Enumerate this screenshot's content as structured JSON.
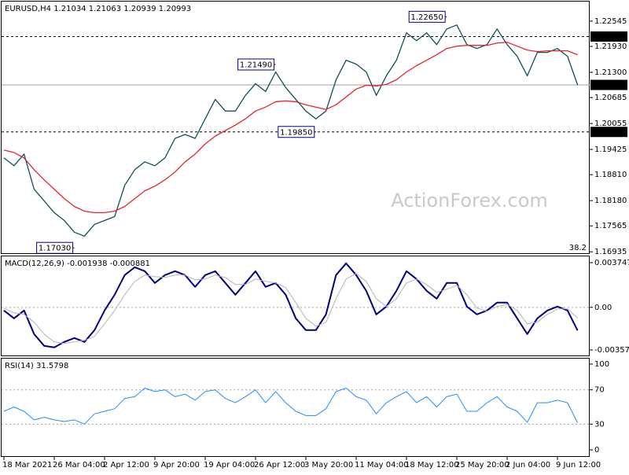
{
  "chart_data": [
    {
      "type": "price",
      "title": "EURUSD,H4  1.21034 1.21063 1.20939 1.20993",
      "categories": [
        "18 Mar 2021",
        null,
        null,
        null,
        null,
        "26 Mar 04:00",
        null,
        null,
        null,
        null,
        "2 Apr 12:00",
        null,
        null,
        null,
        null,
        "9 Apr 20:00",
        null,
        null,
        null,
        null,
        "19 Apr 04:00",
        null,
        null,
        null,
        null,
        "26 Apr 12:00",
        null,
        null,
        null,
        null,
        "3 May 20:00",
        null,
        null,
        null,
        null,
        "11 May 04:00",
        null,
        null,
        null,
        null,
        "18 May 12:00",
        null,
        null,
        null,
        null,
        "25 May 20:00",
        null,
        null,
        null,
        null,
        "2 Jun 04:00",
        null,
        null,
        null,
        null,
        "9 Jun 12:00",
        null,
        null
      ],
      "series": [
        {
          "color": "#0b4f5c",
          "values": [
            1.19217,
            1.19027,
            1.19312,
            1.18456,
            1.18171,
            1.17886,
            1.17696,
            1.1741,
            1.17315,
            1.17601,
            1.17696,
            1.17791,
            1.18551,
            1.18932,
            1.19122,
            1.19027,
            1.19217,
            1.19692,
            1.19788,
            1.19692,
            1.20168,
            1.20643,
            1.20358,
            1.20358,
            1.20738,
            1.21024,
            1.20833,
            1.21309,
            1.20929,
            1.20643,
            1.20358,
            1.20168,
            1.20358,
            1.21119,
            1.21594,
            1.21499,
            1.21309,
            1.20738,
            1.21214,
            1.21594,
            1.2226,
            1.2207,
            1.2226,
            1.21974,
            1.22355,
            1.2245,
            1.21974,
            1.21879,
            1.21974,
            1.22355,
            1.21974,
            1.21689,
            1.21214,
            1.21784,
            1.21784,
            1.21879,
            1.21689,
            1.20993
          ]
        },
        {
          "color": "#e3262e",
          "values": [
            1.19407,
            1.1935,
            1.19217,
            1.18932,
            1.18685,
            1.18456,
            1.18228,
            1.18038,
            1.17924,
            1.17886,
            1.17886,
            1.17924,
            1.18038,
            1.18228,
            1.18418,
            1.18532,
            1.18685,
            1.18875,
            1.19122,
            1.19312,
            1.19559,
            1.19749,
            1.19883,
            1.20016,
            1.20168,
            1.20358,
            1.20453,
            1.20586,
            1.20605,
            1.20586,
            1.2051,
            1.20453,
            1.20396,
            1.2051,
            1.207,
            1.20891,
            1.20986,
            1.20967,
            1.21005,
            1.21119,
            1.21309,
            1.21461,
            1.21594,
            1.21727,
            1.21879,
            1.21936,
            1.21955,
            1.21955,
            1.21955,
            1.22013,
            1.22032,
            1.21936,
            1.21841,
            1.21803,
            1.21822,
            1.21822,
            1.21822,
            1.21727
          ]
        }
      ],
      "ylim": [
        1.169,
        1.2302
      ],
      "yticks": [
        {
          "value": 1.22545,
          "label": "1.22545"
        },
        {
          "value": 1.2193,
          "label": "1.21930"
        },
        {
          "value": 1.213,
          "label": "1.21300"
        },
        {
          "value": 1.20685,
          "label": "1.20685"
        },
        {
          "value": 1.20055,
          "label": "1.20055"
        },
        {
          "value": 1.19425,
          "label": "1.19425"
        },
        {
          "value": 1.1881,
          "label": "1.18810"
        },
        {
          "value": 1.1818,
          "label": "1.18180"
        },
        {
          "value": 1.17565,
          "label": "1.17565"
        },
        {
          "value": 1.16935,
          "label": "1.16935"
        }
      ],
      "levels": [
        {
          "value": 1.2217,
          "label": "1.22170",
          "style": "dashed"
        },
        {
          "value": 1.20993,
          "label": "1.20993",
          "style": "solid"
        },
        {
          "value": 1.1985,
          "label": "1.19850",
          "style": "dashed"
        }
      ],
      "annotations": [
        {
          "x": 44,
          "value": 1.2265,
          "label": "1.22650"
        },
        {
          "x": 27,
          "value": 1.2149,
          "label": "1.21490"
        },
        {
          "x": 31,
          "value": 1.1985,
          "label": "1.19850"
        },
        {
          "x": 7,
          "value": 1.1703,
          "label": "1.17030"
        }
      ],
      "fibo_label": 38.2,
      "watermark": "ActionForex.com"
    },
    {
      "type": "line",
      "title": "MACD(12,26,9) -0.001938 -0.000881",
      "series": [
        {
          "color": "#000080",
          "width": 2,
          "values": [
            -0.000264,
            -0.000923,
            -0.000264,
            -0.002242,
            -0.003232,
            -0.003363,
            -0.002902,
            -0.002572,
            -0.002902,
            -0.001913,
            -0.000264,
            0.001055,
            0.002704,
            0.003363,
            0.003034,
            0.002044,
            0.002704,
            0.003034,
            0.002704,
            0.001715,
            0.002704,
            0.003034,
            0.002044,
            0.001055,
            0.002044,
            0.003034,
            0.001715,
            0.002044,
            0.001055,
            -0.000923,
            -0.001913,
            -0.001913,
            -0.000594,
            0.002704,
            0.003693,
            0.002704,
            0.001385,
            -0.000594,
            6.6e-05,
            0.001385,
            0.003034,
            0.002374,
            0.001385,
            0.000725,
            0.002044,
            0.002044,
            6.6e-05,
            -0.000594,
            -0.000264,
            0.000396,
            0.000396,
            -0.000923,
            -0.002242,
            -0.000923,
            -0.000264,
            6.6e-05,
            -0.000264,
            -0.001938
          ]
        },
        {
          "color": "#b4b4b4",
          "width": 1,
          "values": [
            -6.6e-05,
            -0.000462,
            -0.000594,
            -0.001253,
            -0.002242,
            -0.002902,
            -0.003034,
            -0.002902,
            -0.00277,
            -0.00244,
            -0.001385,
            -0.000264,
            0.001055,
            0.002176,
            0.002704,
            0.002572,
            0.002506,
            0.002704,
            0.002704,
            0.002308,
            0.002374,
            0.002704,
            0.002506,
            0.001913,
            0.001913,
            0.002374,
            0.002176,
            0.002044,
            0.001649,
            0.000396,
            -0.000923,
            -0.001583,
            -0.001253,
            0.000725,
            0.002374,
            0.002836,
            0.002176,
            0.000725,
            6.6e-05,
            0.000725,
            0.002044,
            0.002374,
            0.001913,
            0.001253,
            0.001517,
            0.001847,
            0.001055,
            -6.6e-05,
            -0.00033,
            6.6e-05,
            0.000264,
            -0.000264,
            -0.001385,
            -0.001253,
            -0.000594,
            -0.000132,
            -0.000132,
            -0.000881
          ]
        }
      ],
      "ylim": [
        -0.004034,
        0.004275
      ],
      "yticks": [
        0.003747,
        {
          "value": 0,
          "label": "0.00"
        },
        -0.003573
      ],
      "hlines": [
        0
      ]
    },
    {
      "type": "line",
      "title": "RSI(14) 31.5798",
      "series": [
        {
          "color": "#1e8fff",
          "width": 1,
          "values": [
            45,
            50,
            45,
            35,
            38,
            35,
            33,
            35,
            30,
            42,
            45,
            48,
            60,
            62,
            72,
            68,
            70,
            62,
            65,
            58,
            68,
            70,
            60,
            55,
            62,
            70,
            55,
            68,
            55,
            45,
            40,
            40,
            48,
            68,
            72,
            62,
            58,
            42,
            55,
            62,
            68,
            55,
            62,
            50,
            62,
            65,
            45,
            45,
            55,
            62,
            50,
            45,
            32,
            55,
            55,
            58,
            55,
            31.5798
          ]
        }
      ],
      "ylim": [
        -7.3,
        106.4
      ],
      "yticks": [
        100,
        70,
        30,
        0
      ],
      "hlines": [
        70,
        30
      ]
    }
  ]
}
